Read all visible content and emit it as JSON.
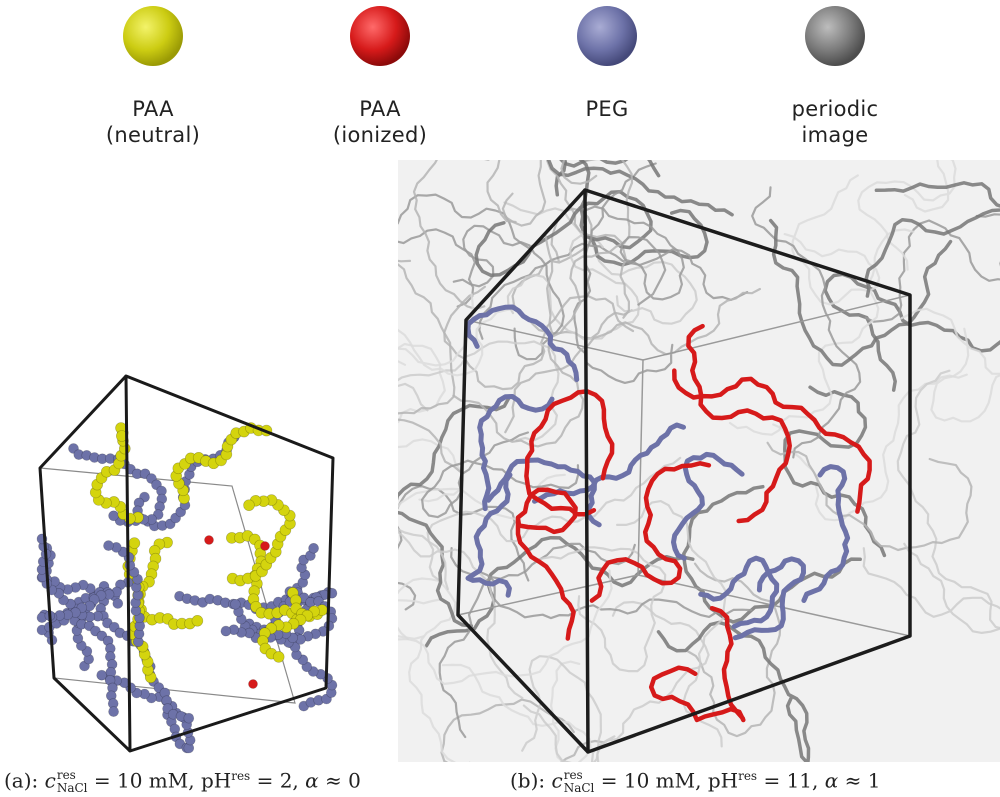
{
  "colors": {
    "paa_neutral": "#d4d40e",
    "paa_ionized": "#d61a1a",
    "peg": "#6d72a8",
    "periodic_image": "#7c7c7c"
  },
  "legend": [
    {
      "line1": "PAA",
      "line2": "(neutral)",
      "color_key": "paa_neutral"
    },
    {
      "line1": "PAA",
      "line2": "(ionized)",
      "color_key": "paa_ionized"
    },
    {
      "line1": "PEG",
      "line2": "",
      "color_key": "peg"
    },
    {
      "line1": "periodic",
      "line2": "image",
      "color_key": "periodic_image"
    }
  ],
  "captions": {
    "a": {
      "label": "(a):",
      "c": "c",
      "c_sup": "res",
      "c_sub": "NaCl",
      "c_val": " = 10 mM, ",
      "ph": "pH",
      "ph_sup": "res",
      "ph_val": " = 2, ",
      "alpha": "α",
      "alpha_val": " ≈ 0"
    },
    "b": {
      "label": "(b):",
      "c": "c",
      "c_sup": "res",
      "c_sub": "NaCl",
      "c_val": " = 10 mM, ",
      "ph": "pH",
      "ph_sup": "res",
      "ph_val": " = 11, ",
      "alpha": "α",
      "alpha_val": " ≈ 1"
    }
  }
}
